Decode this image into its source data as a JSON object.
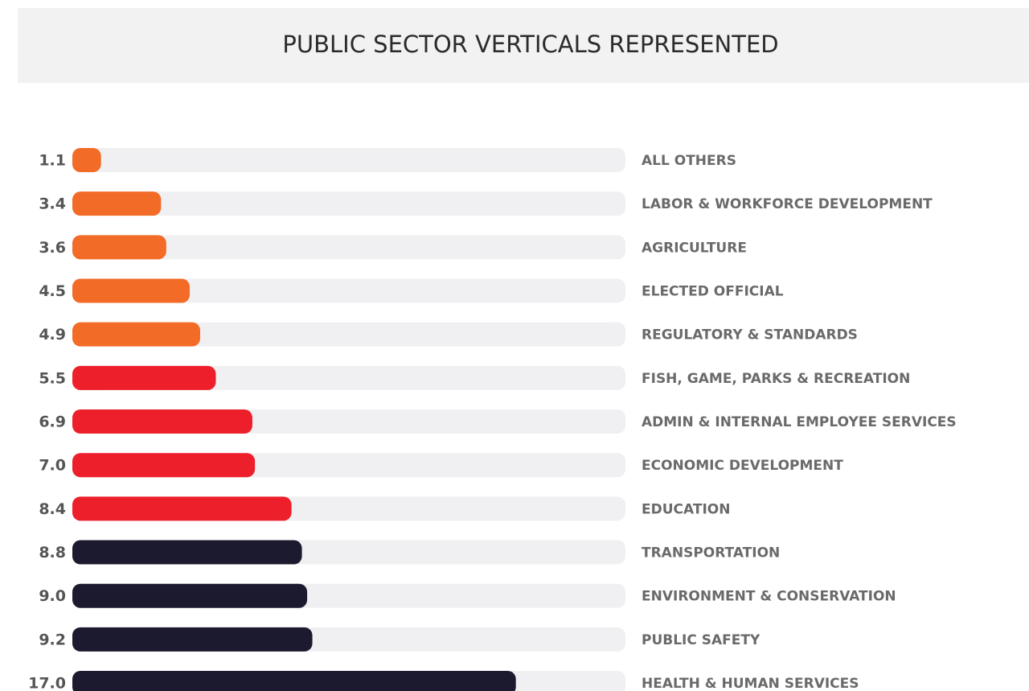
{
  "chart_data": {
    "type": "hbar",
    "title": "PUBLIC SECTOR VERTICALS REPRESENTED",
    "categories": [
      "ALL OTHERS",
      "LABOR & WORKFORCE DEVELOPMENT",
      "AGRICULTURE",
      "ELECTED OFFICIAL",
      "REGULATORY & STANDARDS",
      "FISH, GAME, PARKS & RECREATION",
      "ADMIN & INTERNAL EMPLOYEE SERVICES",
      "ECONOMIC DEVELOPMENT",
      "EDUCATION",
      "TRANSPORTATION",
      "ENVIRONMENT & CONSERVATION",
      "PUBLIC SAFETY",
      "HEALTH & HUMAN SERVICES"
    ],
    "values": [
      1.1,
      3.4,
      3.6,
      4.5,
      4.9,
      5.5,
      6.9,
      7.0,
      8.4,
      8.8,
      9.0,
      9.2,
      17.0
    ],
    "value_labels": [
      "1.1",
      "3.4",
      "3.6",
      "4.5",
      "4.9",
      "5.5",
      "6.9",
      "7.0",
      "8.4",
      "8.8",
      "9.0",
      "9.2",
      "17.0"
    ],
    "colors": [
      "#f26b27",
      "#f26b27",
      "#f26b27",
      "#f26b27",
      "#f26b27",
      "#ed1f2a",
      "#ed1f2a",
      "#ed1f2a",
      "#ed1f2a",
      "#1c1a2e",
      "#1c1a2e",
      "#1c1a2e",
      "#1c1a2e"
    ],
    "xlim": [
      0,
      21.2
    ]
  }
}
